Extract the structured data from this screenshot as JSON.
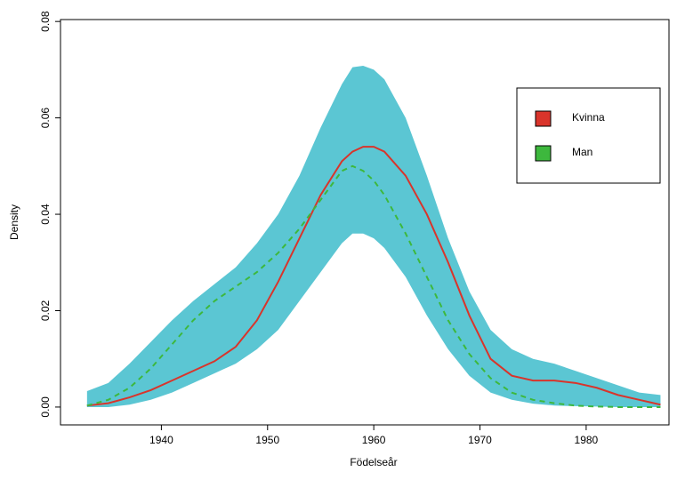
{
  "chart_data": {
    "type": "density",
    "x_label": "Födelseår",
    "y_label": "Density",
    "x": [
      1933,
      1935,
      1937,
      1939,
      1941,
      1943,
      1945,
      1947,
      1949,
      1951,
      1953,
      1955,
      1957,
      1958,
      1959,
      1960,
      1961,
      1963,
      1965,
      1967,
      1969,
      1971,
      1973,
      1975,
      1977,
      1979,
      1981,
      1983,
      1985,
      1987
    ],
    "band": {
      "color": "#5bc6d3",
      "upper": [
        0.0033,
        0.005,
        0.009,
        0.0135,
        0.018,
        0.022,
        0.0255,
        0.029,
        0.034,
        0.04,
        0.048,
        0.058,
        0.067,
        0.0705,
        0.0708,
        0.07,
        0.068,
        0.06,
        0.048,
        0.035,
        0.024,
        0.016,
        0.012,
        0.01,
        0.009,
        0.0075,
        0.006,
        0.0045,
        0.003,
        0.0025
      ],
      "lower": [
        0,
        0,
        0.0005,
        0.0015,
        0.003,
        0.005,
        0.007,
        0.009,
        0.012,
        0.016,
        0.022,
        0.028,
        0.034,
        0.036,
        0.036,
        0.035,
        0.033,
        0.027,
        0.019,
        0.012,
        0.0065,
        0.003,
        0.0015,
        0.0007,
        0.0003,
        0.0002,
        0.0001,
        0,
        0,
        0
      ]
    },
    "series": [
      {
        "name": "Kvinna",
        "color": "#d9342b",
        "dashed": false,
        "values": [
          0.0003,
          0.0008,
          0.002,
          0.0035,
          0.0055,
          0.0075,
          0.0095,
          0.0125,
          0.018,
          0.026,
          0.035,
          0.044,
          0.051,
          0.053,
          0.054,
          0.054,
          0.053,
          0.048,
          0.04,
          0.03,
          0.019,
          0.01,
          0.0065,
          0.0055,
          0.0055,
          0.005,
          0.004,
          0.0025,
          0.0015,
          0.0005
        ]
      },
      {
        "name": "Man",
        "color": "#3db83d",
        "dashed": true,
        "values": [
          0.0003,
          0.0015,
          0.004,
          0.008,
          0.013,
          0.018,
          0.022,
          0.025,
          0.028,
          0.032,
          0.037,
          0.043,
          0.049,
          0.05,
          0.049,
          0.047,
          0.044,
          0.036,
          0.027,
          0.018,
          0.011,
          0.006,
          0.003,
          0.0015,
          0.0008,
          0.0003,
          0.0001,
          0,
          0,
          0
        ]
      }
    ],
    "xlim": [
      1930.5,
      1987.8
    ],
    "xticks": [
      1940,
      1950,
      1960,
      1970,
      1980
    ],
    "ylim": [
      -0.0037,
      0.0804
    ],
    "yticks": [
      {
        "value": 0,
        "label": "0.00"
      },
      0.02,
      0.04,
      0.06,
      0.08
    ],
    "legend": "topright"
  }
}
